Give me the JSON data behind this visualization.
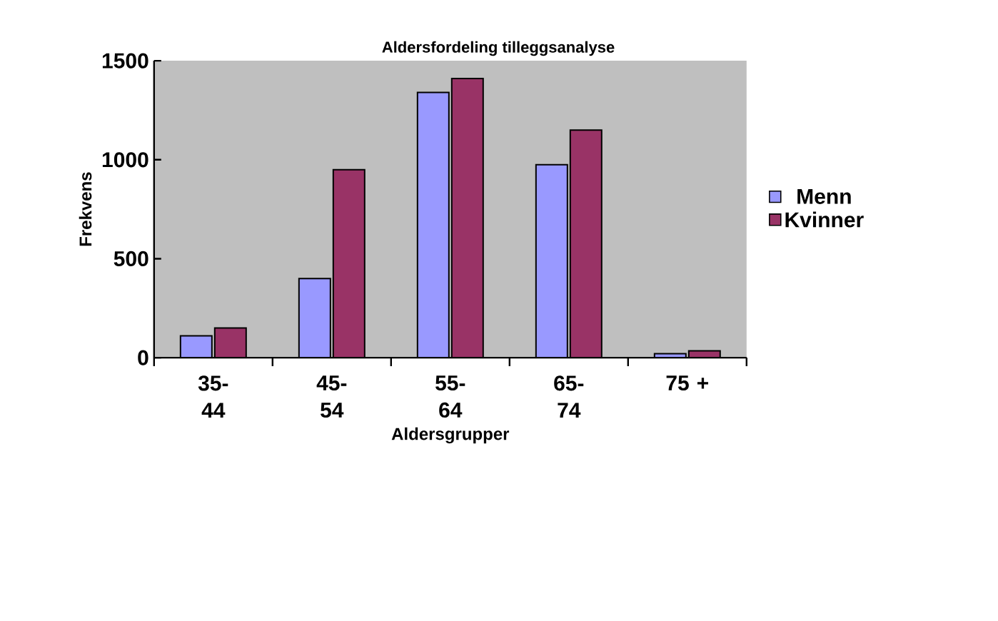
{
  "chart_data": {
    "type": "bar",
    "title": "Aldersfordeling tilleggsanalyse",
    "xlabel": "Aldersgrupper",
    "ylabel": "Frekvens",
    "categories": [
      "35-44",
      "45-54",
      "55-64",
      "65-74",
      "75 +"
    ],
    "series": [
      {
        "name": "Menn",
        "color": "#9999ff",
        "values": [
          110,
          400,
          1340,
          975,
          20
        ]
      },
      {
        "name": "Kvinner",
        "color": "#993366",
        "values": [
          150,
          950,
          1410,
          1150,
          35
        ]
      }
    ],
    "ylim": [
      0,
      1500
    ],
    "yticks": [
      0,
      500,
      1000,
      1500
    ],
    "grid": false,
    "legend": "right"
  }
}
